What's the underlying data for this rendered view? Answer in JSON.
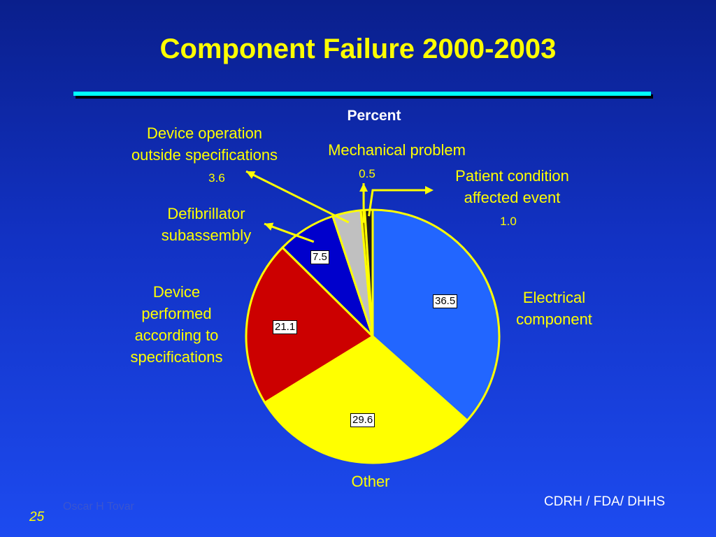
{
  "chart_data": {
    "type": "pie",
    "title": "Component Failure 2000-2003",
    "subtitle": "Percent",
    "slices": [
      {
        "label": "Electrical component",
        "value": 36.5,
        "color": "#2266ff"
      },
      {
        "label": "Other",
        "value": 29.6,
        "color": "#ffff00"
      },
      {
        "label": "Device performed according to specifications",
        "value": 21.1,
        "color": "#cc0000"
      },
      {
        "label": "Defibrillator subassembly",
        "value": 7.5,
        "color": "#0000cc"
      },
      {
        "label": "Device operation outside specifications",
        "value": 3.6,
        "color": "#c0c0c0"
      },
      {
        "label": "Mechanical problem",
        "value": 0.5,
        "color": "#8a7a00"
      },
      {
        "label": "Patient condition affected event",
        "value": 1.0,
        "color": "#1a1a1a"
      }
    ],
    "value_texts": [
      "36.5",
      "29.6",
      "21.1",
      "7.5",
      "3.6",
      "0.5",
      "1.0"
    ]
  },
  "labels": {
    "device_operation": [
      "Device operation",
      "outside specifications"
    ],
    "mechanical": "Mechanical problem",
    "patient": [
      "Patient condition",
      "affected event"
    ],
    "defib": [
      "Defibrillator",
      "subassembly"
    ],
    "device_performed": [
      "Device",
      "performed",
      "according to",
      "specifications"
    ],
    "electrical": [
      "Electrical",
      "component"
    ],
    "other": "Other"
  },
  "footer": {
    "author": "Oscar H Tovar",
    "page": "25",
    "agency": "CDRH / FDA/ DHHS"
  }
}
